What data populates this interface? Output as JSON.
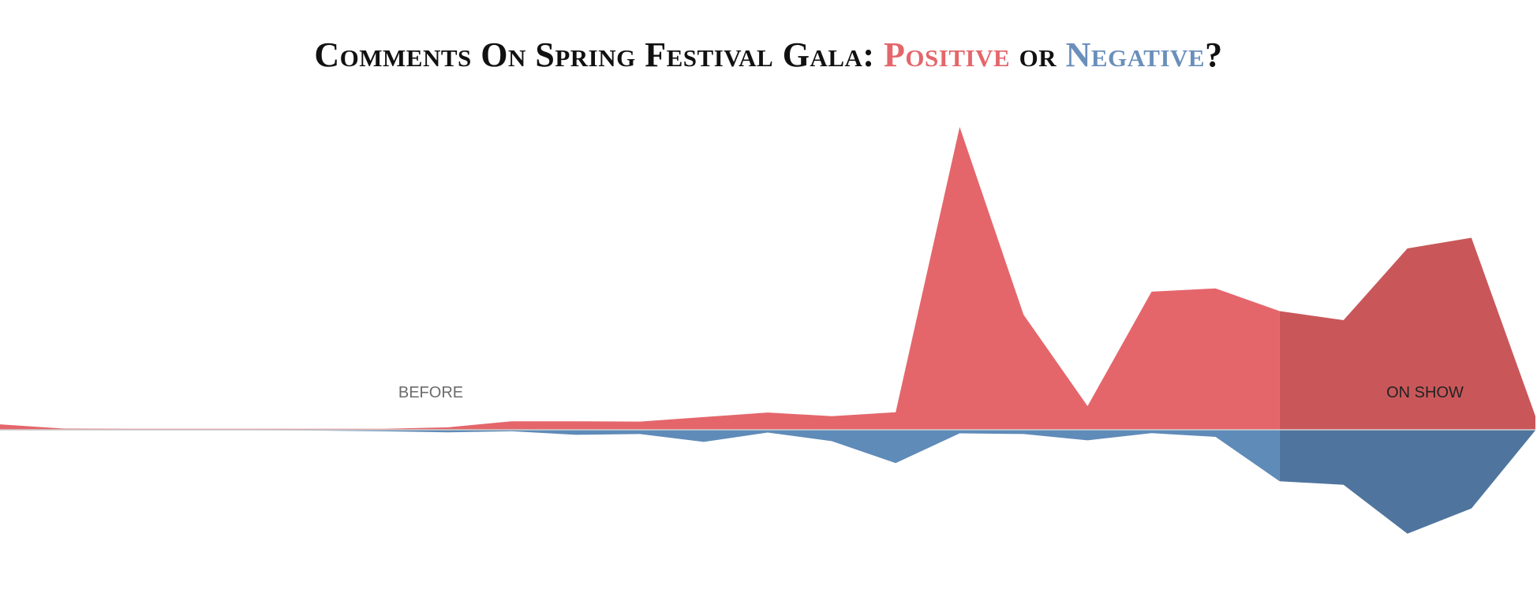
{
  "title": {
    "prefix": "Comments On Spring Festival Gala: ",
    "positive_word": "Positive",
    "connector": " or ",
    "negative_word": "Negative",
    "suffix": "?"
  },
  "colors": {
    "positive": "#e4666b",
    "negative": "#5f8bb8",
    "positive_on_show": "#c9575a",
    "negative_on_show": "#4f759e",
    "baseline": "#cfcfcf",
    "before_label": "#6b6b6b",
    "on_show_label": "#222222"
  },
  "chart_data": {
    "type": "area",
    "title": "Comments On Spring Festival Gala: Positive or Negative?",
    "xlabel": "",
    "ylabel": "",
    "x": [
      0,
      1,
      2,
      3,
      4,
      5,
      6,
      7,
      8,
      9,
      10,
      11,
      12,
      13,
      14,
      15,
      16,
      17,
      18,
      19,
      20,
      21,
      22,
      23,
      24
    ],
    "ylim": [
      -500,
      1000
    ],
    "grid": false,
    "legend": "none",
    "series": [
      {
        "name": "Positive",
        "values": [
          18,
          4,
          3,
          3,
          3,
          3,
          3,
          8,
          28,
          28,
          27,
          42,
          57,
          45,
          58,
          1000,
          380,
          78,
          456,
          467,
          392,
          362,
          599,
          634,
          45
        ]
      },
      {
        "name": "Negative",
        "values": [
          -2,
          -2,
          -2,
          -2,
          -2,
          -3,
          -6,
          -10,
          -6,
          -20,
          -17,
          -48,
          -11,
          -45,
          -132,
          -14,
          -17,
          -42,
          -13,
          -28,
          -204,
          -218,
          -412,
          -312,
          -2
        ]
      }
    ],
    "phases": [
      {
        "label": "BEFORE",
        "start": 0,
        "end": 20
      },
      {
        "label": "ON SHOW",
        "start": 20,
        "end": 24
      }
    ]
  }
}
